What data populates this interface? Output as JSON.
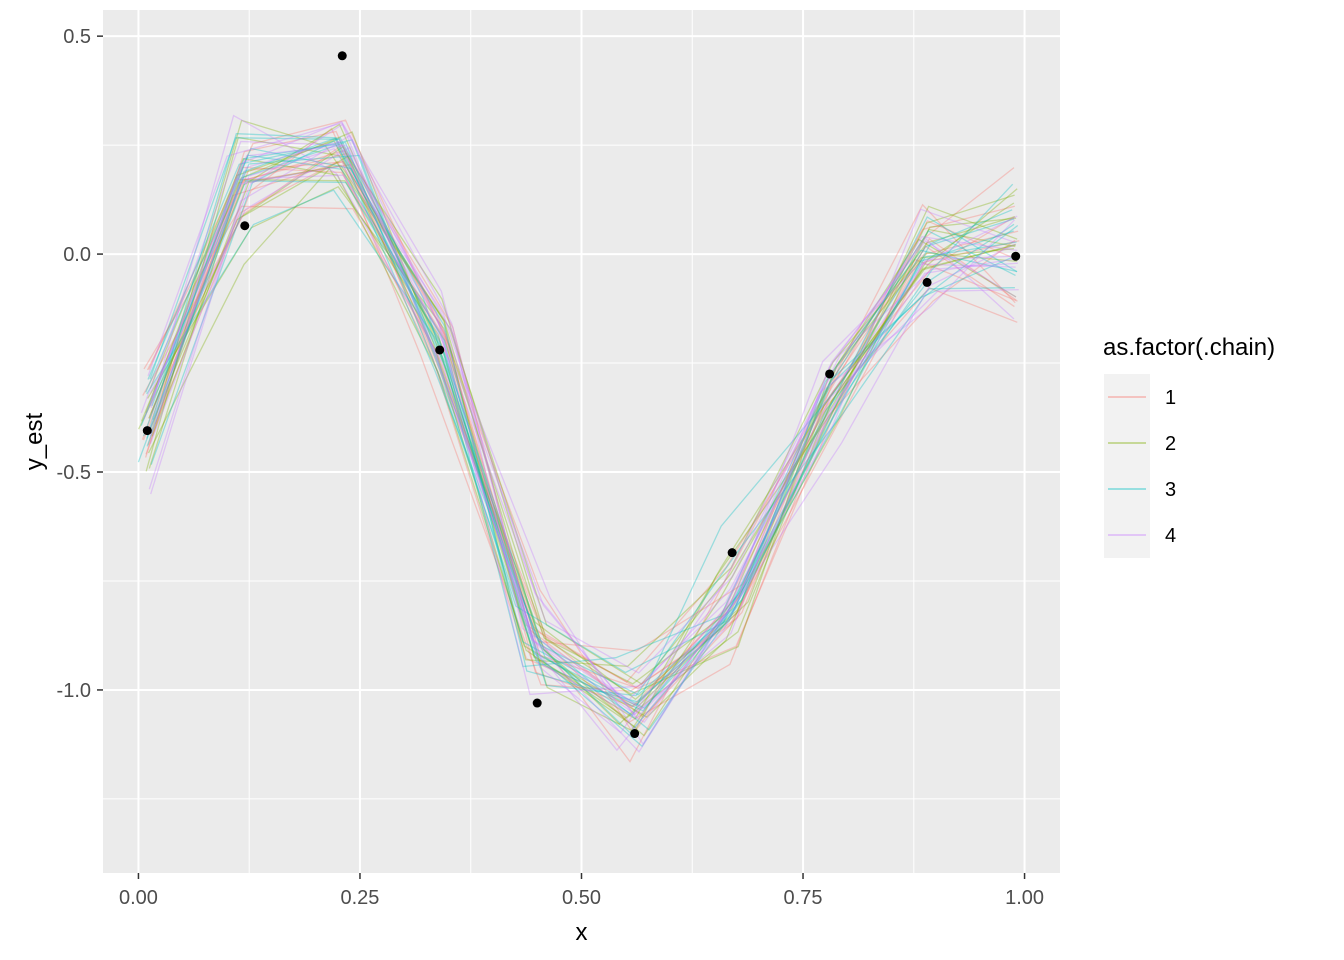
{
  "chart_data": {
    "type": "line",
    "xlabel": "x",
    "ylabel": "y_est",
    "xlim": [
      -0.04,
      1.04
    ],
    "ylim": [
      -1.42,
      0.56
    ],
    "x_ticks": [
      0.0,
      0.25,
      0.5,
      0.75,
      1.0
    ],
    "x_tick_labels": [
      "0.00",
      "0.25",
      "0.50",
      "0.75",
      "1.00"
    ],
    "y_ticks": [
      0.5,
      0.0,
      -0.5,
      -1.0
    ],
    "y_tick_labels": [
      "0.5",
      "0.0",
      "-0.5",
      "-1.0"
    ],
    "grid": true,
    "legend": {
      "title": "as.factor(.chain)",
      "placement": "right",
      "entries": [
        {
          "label": "1",
          "color": "#F8766D"
        },
        {
          "label": "2",
          "color": "#7CAE00"
        },
        {
          "label": "3",
          "color": "#00BFC4"
        },
        {
          "label": "4",
          "color": "#C77CFF"
        }
      ]
    },
    "line_alpha": 0.35,
    "draws_per_chain": 12,
    "points": {
      "color": "#000000",
      "x": [
        0.01,
        0.12,
        0.23,
        0.34,
        0.45,
        0.56,
        0.67,
        0.78,
        0.89,
        0.99
      ],
      "y": [
        -0.405,
        0.065,
        0.455,
        -0.22,
        -1.03,
        -1.1,
        -0.685,
        -0.275,
        -0.065,
        -0.005
      ]
    },
    "fit_mean": {
      "x": [
        0.01,
        0.12,
        0.23,
        0.34,
        0.45,
        0.56,
        0.67,
        0.78,
        0.89,
        0.99
      ],
      "y": [
        -0.4,
        0.17,
        0.23,
        -0.21,
        -0.88,
        -1.05,
        -0.8,
        -0.33,
        0.0,
        0.01
      ]
    }
  }
}
